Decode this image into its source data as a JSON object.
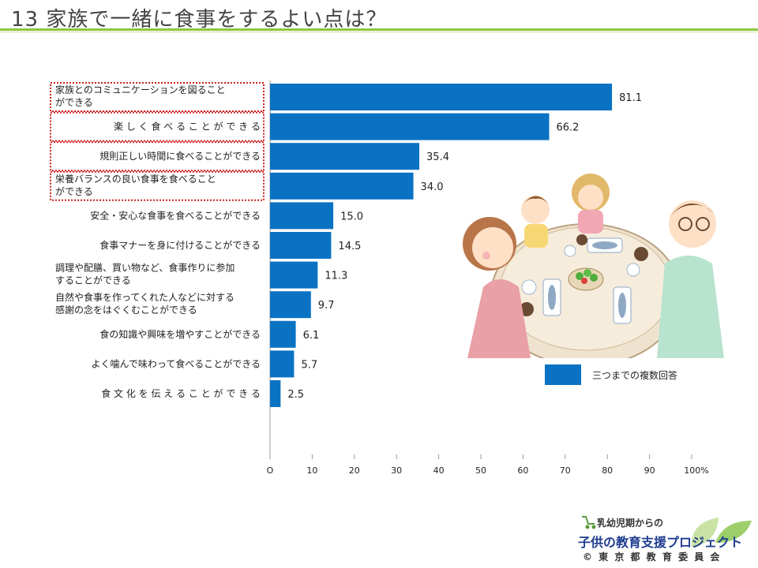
{
  "title": "13 家族で一緒に食事をするよい点は？",
  "legend_label": "三つまでの複数回答",
  "logo": {
    "line1": "乳幼児期からの",
    "line2": "子供の教育支援プロジェクト",
    "org": "© 東 京 都 教 育 委 員 会"
  },
  "colors": {
    "bar": "#0a72c3",
    "highlight_border": "#cc2222",
    "title_rule": "#8dc63f"
  },
  "chart_data": {
    "type": "bar",
    "orientation": "horizontal",
    "categories": [
      [
        "家族とのコミュニケーションを図ること",
        "ができる"
      ],
      [
        "楽 し く 食 べ る こ と が で き る"
      ],
      [
        "規則正しい時間に食べることができる"
      ],
      [
        "栄養バランスの良い食事を食べること",
        "ができる"
      ],
      [
        "安全・安心な食事を食べることができる"
      ],
      [
        "食事マナーを身に付けることができる"
      ],
      [
        "調理や配膳、買い物など、食事作りに参加",
        "することができる"
      ],
      [
        "自然や食事を作ってくれた人などに対する",
        "感謝の念をはぐくむことができる"
      ],
      [
        "食の知識や興味を増やすことができる"
      ],
      [
        "よく噛んで味わって食べることができる"
      ],
      [
        "食 文 化 を 伝 え る こ と が で き る"
      ]
    ],
    "values": [
      81.1,
      66.2,
      35.4,
      34.0,
      15.0,
      14.5,
      11.3,
      9.7,
      6.1,
      5.7,
      2.5
    ],
    "value_labels": [
      "81.1",
      "66.2",
      "35.4",
      "34.0",
      "15.0",
      "14.5",
      "11.3",
      "9.7",
      "6.1",
      "5.7",
      "2.5"
    ],
    "highlighted": [
      0,
      1,
      2,
      3
    ],
    "xlim": [
      0,
      100
    ],
    "xticks": [
      "O",
      "10",
      "20",
      "30",
      "40",
      "50",
      "60",
      "70",
      "80",
      "90",
      "100%"
    ],
    "series": [
      {
        "name": "三つまでの複数回答",
        "values": [
          81.1,
          66.2,
          35.4,
          34.0,
          15.0,
          14.5,
          11.3,
          9.7,
          6.1,
          5.7,
          2.5
        ]
      }
    ]
  }
}
